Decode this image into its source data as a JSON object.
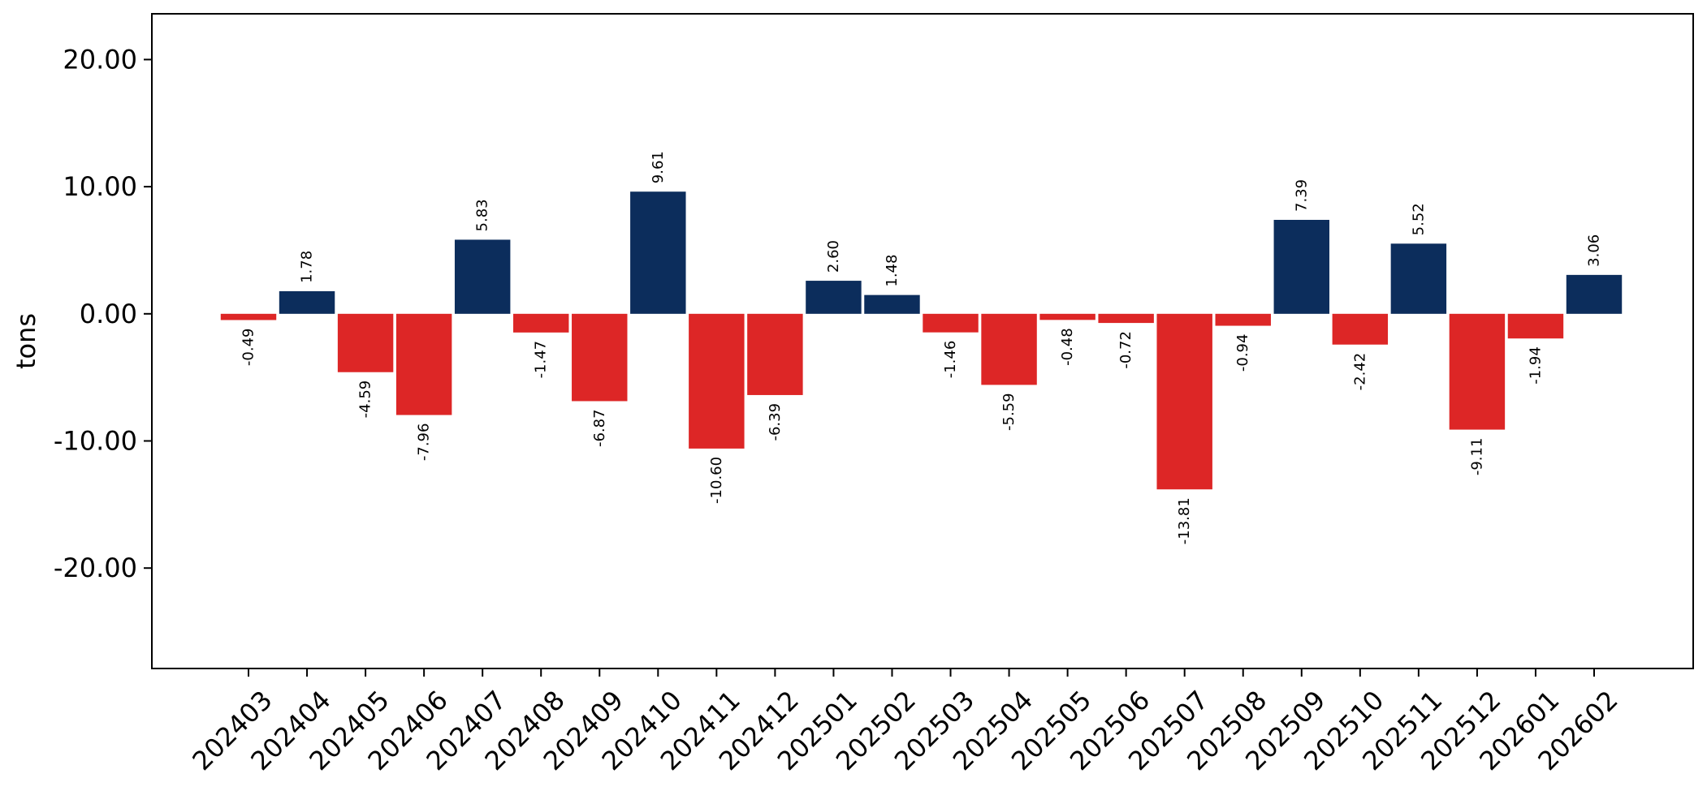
{
  "chart_data": {
    "type": "bar",
    "title": "",
    "xlabel": "",
    "ylabel": "tons",
    "ylim": [
      -27.9,
      23.6
    ],
    "yticks": [
      -20,
      -10,
      0,
      10,
      20
    ],
    "ytick_labels": [
      "-20.00",
      "-10.00",
      "0.00",
      "10.00",
      "20.00"
    ],
    "categories": [
      "202403",
      "202404",
      "202405",
      "202406",
      "202407",
      "202408",
      "202409",
      "202410",
      "202411",
      "202412",
      "202501",
      "202502",
      "202503",
      "202504",
      "202505",
      "202506",
      "202507",
      "202508",
      "202509",
      "202510",
      "202511",
      "202512",
      "202601",
      "202602"
    ],
    "values": [
      -0.49,
      1.78,
      -4.59,
      -7.96,
      5.83,
      -1.47,
      -6.87,
      9.61,
      -10.6,
      -6.39,
      2.6,
      1.48,
      -1.46,
      -5.59,
      -0.48,
      -0.72,
      -13.81,
      -0.94,
      7.39,
      -2.42,
      5.52,
      -9.11,
      -1.94,
      3.06
    ],
    "value_labels": [
      "-0.49",
      "1.78",
      "-4.59",
      "-7.96",
      "5.83",
      "-1.47",
      "-6.87",
      "9.61",
      "-10.60",
      "-6.39",
      "2.60",
      "1.48",
      "-1.46",
      "-5.59",
      "-0.48",
      "-0.72",
      "-13.81",
      "-0.94",
      "7.39",
      "-2.42",
      "5.52",
      "-9.11",
      "-1.94",
      "3.06"
    ],
    "colors": {
      "positive": "#0c2d5c",
      "negative": "#dd2626"
    },
    "grid": false,
    "legend": "none"
  }
}
